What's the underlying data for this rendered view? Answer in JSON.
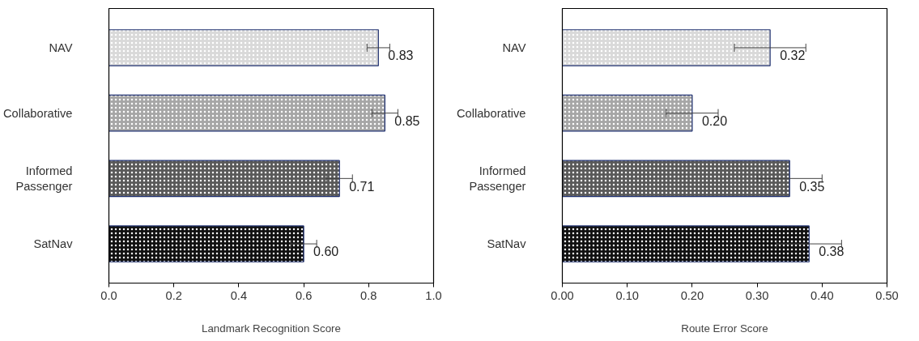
{
  "chart_data": [
    {
      "type": "bar",
      "orientation": "horizontal",
      "xlabel": "Landmark Recognition Score",
      "categories": [
        "NAV",
        "Collaborative",
        "Informed Passenger",
        "SatNav"
      ],
      "values": [
        0.83,
        0.85,
        0.71,
        0.6
      ],
      "errors": [
        0.035,
        0.04,
        0.04,
        0.04
      ],
      "colors": [
        "#d9d9d9",
        "#a6a6a6",
        "#595959",
        "#111111"
      ],
      "xlim": [
        0,
        1
      ],
      "xticks": [
        {
          "value": 0,
          "label": "0.0"
        },
        0.2,
        0.4,
        0.6,
        0.8,
        {
          "value": 1,
          "label": "1.0"
        }
      ],
      "value_labels": [
        "0.83",
        "0.85",
        "0.71",
        "0.60"
      ]
    },
    {
      "type": "bar",
      "orientation": "horizontal",
      "xlabel": "Route Error Score",
      "categories": [
        "NAV",
        "Collaborative",
        "Informed Passenger",
        "SatNav"
      ],
      "values": [
        0.32,
        0.2,
        0.35,
        0.38
      ],
      "value_labels": [
        "0.32",
        "0.20",
        "0.35",
        "0.38"
      ],
      "errors": [
        0.055,
        0.04,
        0.05,
        0.05
      ],
      "colors": [
        "#d9d9d9",
        "#a6a6a6",
        "#595959",
        "#111111"
      ],
      "xlim": [
        0,
        0.5
      ],
      "xticks": [
        {
          "value": 0,
          "label": "0.00"
        },
        {
          "value": 0.1,
          "label": "0.10"
        },
        {
          "value": 0.2,
          "label": "0.20"
        },
        {
          "value": 0.3,
          "label": "0.30"
        },
        {
          "value": 0.4,
          "label": "0.40"
        },
        {
          "value": 0.5,
          "label": "0.50"
        }
      ]
    }
  ]
}
